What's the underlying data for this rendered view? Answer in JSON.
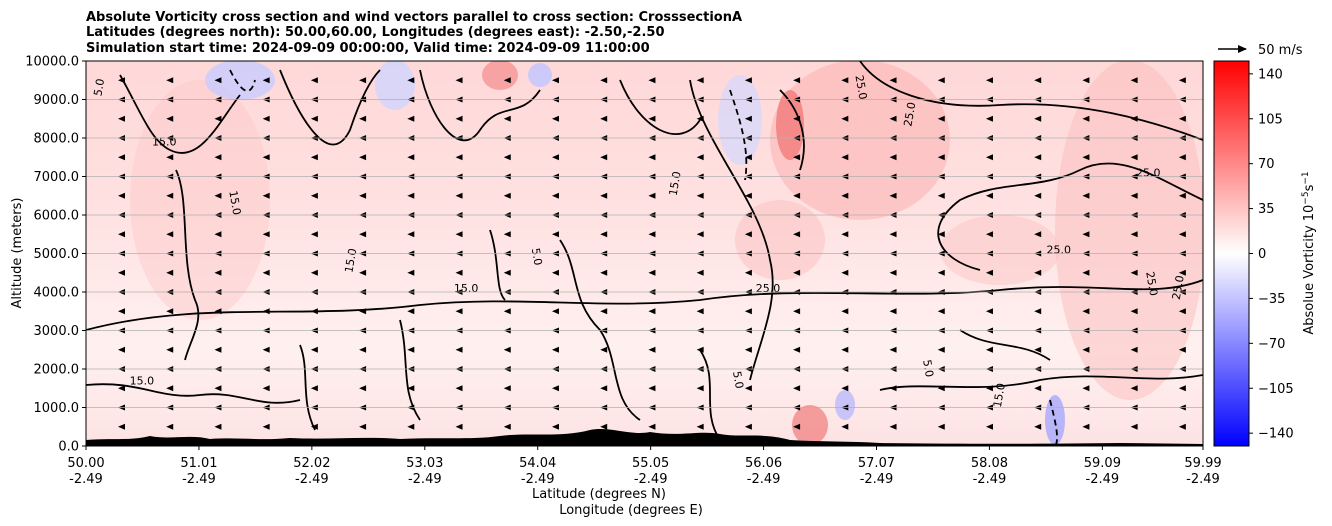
{
  "chart_data": {
    "type": "heatmap",
    "title_lines": [
      "Absolute Vorticity cross section and wind vectors parallel to cross section: CrosssectionA",
      "Latitudes (degrees north): 50.00,60.00, Longitudes (degrees east): -2.50,-2.50",
      "Simulation start time: 2024-09-09 00:00:00, Valid time: 2024-09-09 11:00:00"
    ],
    "ylabel": "Altitude (meters)",
    "xlabel_lat": "Latitude (degrees N)",
    "xlabel_lon": "Longitude (degrees E)",
    "ylim": [
      0,
      10000
    ],
    "xlim": [
      50.0,
      59.99
    ],
    "y_ticks": [
      {
        "value": 0,
        "label": "0.0"
      },
      {
        "value": 1000,
        "label": "1000.0"
      },
      {
        "value": 2000,
        "label": "2000.0"
      },
      {
        "value": 3000,
        "label": "3000.0"
      },
      {
        "value": 4000,
        "label": "4000.0"
      },
      {
        "value": 5000,
        "label": "5000.0"
      },
      {
        "value": 6000,
        "label": "6000.0"
      },
      {
        "value": 7000,
        "label": "7000.0"
      },
      {
        "value": 8000,
        "label": "8000.0"
      },
      {
        "value": 9000,
        "label": "9000.0"
      },
      {
        "value": 10000,
        "label": "10000.0"
      }
    ],
    "x_ticks": [
      {
        "value": 50.0,
        "lat": "50.00",
        "lon": "-2.49"
      },
      {
        "value": 51.01,
        "lat": "51.01",
        "lon": "-2.49"
      },
      {
        "value": 52.02,
        "lat": "52.02",
        "lon": "-2.49"
      },
      {
        "value": 53.03,
        "lat": "53.03",
        "lon": "-2.49"
      },
      {
        "value": 54.04,
        "lat": "54.04",
        "lon": "-2.49"
      },
      {
        "value": 55.05,
        "lat": "55.05",
        "lon": "-2.49"
      },
      {
        "value": 56.06,
        "lat": "56.06",
        "lon": "-2.49"
      },
      {
        "value": 57.07,
        "lat": "57.07",
        "lon": "-2.49"
      },
      {
        "value": 58.08,
        "lat": "58.08",
        "lon": "-2.49"
      },
      {
        "value": 59.09,
        "lat": "59.09",
        "lon": "-2.49"
      },
      {
        "value": 59.99,
        "lat": "59.99",
        "lon": "-2.49"
      }
    ],
    "colorbar": {
      "label": "Absolue Vorticity 10",
      "label_exp": "−5",
      "label_unit": "s",
      "label_unit_exp": "−1",
      "range": [
        -150,
        150
      ],
      "ticks": [
        {
          "value": 140,
          "label": "140"
        },
        {
          "value": 105,
          "label": "105"
        },
        {
          "value": 70,
          "label": "70"
        },
        {
          "value": 35,
          "label": "35"
        },
        {
          "value": 0,
          "label": "0"
        },
        {
          "value": -35,
          "label": "−35"
        },
        {
          "value": -70,
          "label": "−70"
        },
        {
          "value": -105,
          "label": "−105"
        },
        {
          "value": -140,
          "label": "−140"
        }
      ],
      "colors": {
        "min": "#0000ff",
        "mid": "#ffffff",
        "max": "#ff0000"
      }
    },
    "quiver_key": {
      "label": "50 m/s",
      "speed": 50
    },
    "wind": {
      "direction": "toward decreasing latitude",
      "rows_altitude": [
        500,
        1000,
        1500,
        2000,
        2500,
        3000,
        3500,
        4000,
        4500,
        5000,
        5500,
        6000,
        6500,
        7000,
        7500,
        8000,
        8500,
        9000,
        9500
      ]
    },
    "contour_labels": [
      "5.0",
      "15.0",
      "25.0"
    ],
    "contour_label_samples": [
      {
        "lat": 50.15,
        "alt": 9300,
        "text": "5.0"
      },
      {
        "lat": 50.7,
        "alt": 7800,
        "text": "15.0"
      },
      {
        "lat": 51.3,
        "alt": 6300,
        "text": "15.0"
      },
      {
        "lat": 52.4,
        "alt": 4800,
        "text": "15.0"
      },
      {
        "lat": 53.4,
        "alt": 4000,
        "text": "15.0"
      },
      {
        "lat": 54.0,
        "alt": 4900,
        "text": "5.0"
      },
      {
        "lat": 55.3,
        "alt": 6800,
        "text": "15.0"
      },
      {
        "lat": 56.1,
        "alt": 4000,
        "text": "25.0"
      },
      {
        "lat": 56.9,
        "alt": 9300,
        "text": "25.0"
      },
      {
        "lat": 57.4,
        "alt": 8600,
        "text": "25.0"
      },
      {
        "lat": 58.7,
        "alt": 5000,
        "text": "25.0"
      },
      {
        "lat": 59.5,
        "alt": 4200,
        "text": "25.0"
      },
      {
        "lat": 59.8,
        "alt": 4100,
        "text": "25.0"
      },
      {
        "lat": 59.5,
        "alt": 7000,
        "text": "25.0"
      },
      {
        "lat": 57.5,
        "alt": 2000,
        "text": "5.0"
      },
      {
        "lat": 58.2,
        "alt": 1300,
        "text": "15.0"
      },
      {
        "lat": 50.5,
        "alt": 1600,
        "text": "15.0"
      },
      {
        "lat": 55.8,
        "alt": 1700,
        "text": "5.0"
      }
    ]
  }
}
